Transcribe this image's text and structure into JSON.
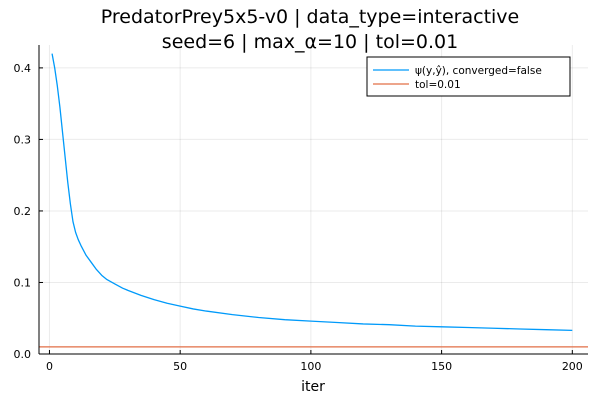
{
  "chart_data": {
    "type": "line",
    "title_lines": [
      "PredatorPrey5x5-v0 | data_type=interactive",
      "seed=6 | max_α=10 | tol=0.01"
    ],
    "xlabel": "iter",
    "ylabel": "",
    "xlim": [
      -4,
      206
    ],
    "ylim": [
      0,
      0.432
    ],
    "xticks": [
      0,
      50,
      100,
      150,
      200
    ],
    "yticks": [
      0.0,
      0.1,
      0.2,
      0.3,
      0.4
    ],
    "xtick_labels": [
      "0",
      "50",
      "100",
      "150",
      "200"
    ],
    "ytick_labels": [
      "0.0",
      "0.1",
      "0.2",
      "0.3",
      "0.4"
    ],
    "grid": true,
    "legend_position": "top-right",
    "series": [
      {
        "name": "ψ(y,ŷ), converged=false",
        "color": "#009AFA",
        "x": [
          1,
          2,
          3,
          4,
          5,
          6,
          7,
          8,
          9,
          10,
          11,
          12,
          14,
          16,
          18,
          20,
          22,
          25,
          28,
          30,
          35,
          40,
          45,
          50,
          55,
          60,
          70,
          80,
          90,
          100,
          110,
          120,
          130,
          140,
          150,
          160,
          170,
          180,
          190,
          200
        ],
        "y": [
          0.42,
          0.4,
          0.375,
          0.345,
          0.31,
          0.275,
          0.24,
          0.21,
          0.185,
          0.17,
          0.16,
          0.152,
          0.138,
          0.128,
          0.118,
          0.11,
          0.104,
          0.098,
          0.092,
          0.089,
          0.082,
          0.076,
          0.071,
          0.067,
          0.063,
          0.06,
          0.055,
          0.051,
          0.048,
          0.046,
          0.044,
          0.042,
          0.041,
          0.039,
          0.038,
          0.037,
          0.036,
          0.035,
          0.034,
          0.033
        ]
      },
      {
        "name": "tol=0.01",
        "color": "#E26F46",
        "x": [
          -4,
          206
        ],
        "y": [
          0.01,
          0.01
        ]
      }
    ]
  }
}
